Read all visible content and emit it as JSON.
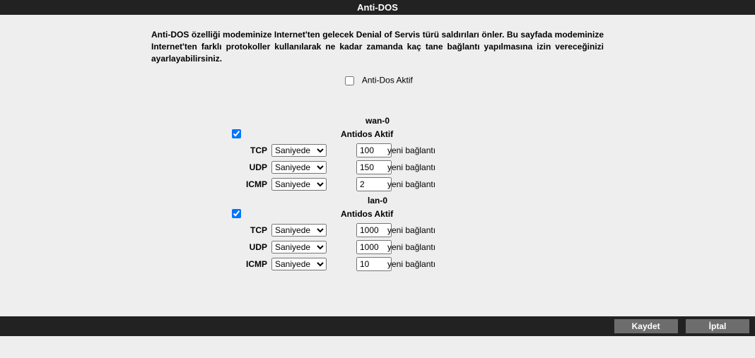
{
  "header": {
    "title": "Anti-DOS"
  },
  "description": "Anti-DOS özelliği modeminize Internet'ten gelecek Denial of Servis türü saldırıları önler. Bu sayfada modeminize Internet'ten farklı protokoller kullanılarak ne kadar zamanda kaç tane bağlantı yapılmasına izin vereceğinizi ayarlayabilirsiniz.",
  "global": {
    "checkbox_checked": false,
    "label": "Anti-Dos Aktif"
  },
  "common": {
    "aktif_label": "Antidos Aktif",
    "interval_option": "Saniyede",
    "suffix": "yeni bağlantı",
    "protocols": {
      "tcp": "TCP",
      "udp": "UDP",
      "icmp": "ICMP"
    }
  },
  "interfaces": [
    {
      "name": "wan-0",
      "checked": true,
      "tcp": "100",
      "udp": "150",
      "icmp": "2"
    },
    {
      "name": "lan-0",
      "checked": true,
      "tcp": "1000",
      "udp": "1000",
      "icmp": "10"
    }
  ],
  "footer": {
    "save": "Kaydet",
    "cancel": "İptal"
  }
}
